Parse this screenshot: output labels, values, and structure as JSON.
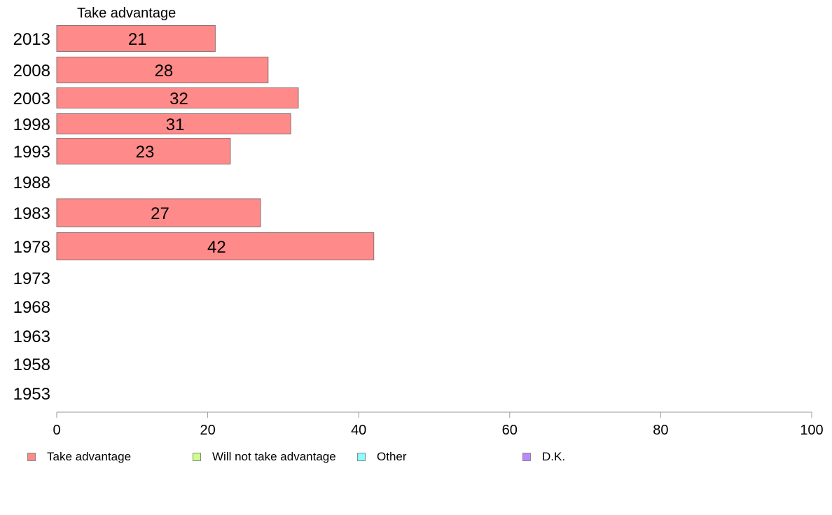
{
  "chart_data": {
    "type": "bar",
    "orientation": "horizontal",
    "title": "Take advantage",
    "categories": [
      "2013",
      "2008",
      "2003",
      "1998",
      "1993",
      "1988",
      "1983",
      "1978",
      "1973",
      "1968",
      "1963",
      "1958",
      "1953"
    ],
    "series": [
      {
        "name": "Take advantage",
        "color": "#ff8a8a",
        "values": [
          21,
          28,
          32,
          31,
          23,
          null,
          27,
          42,
          null,
          null,
          null,
          null,
          null
        ]
      }
    ],
    "xlim": [
      0,
      100
    ],
    "xticks": [
      "0",
      "20",
      "40",
      "60",
      "80",
      "100"
    ],
    "grid": false,
    "legend_position": "bottom"
  },
  "legend": [
    {
      "label": "Take advantage",
      "color": "#ff8a8a"
    },
    {
      "label": "Will not take advantage",
      "color": "#ccff88"
    },
    {
      "label": "Other",
      "color": "#88ffff"
    },
    {
      "label": "D.K.",
      "color": "#bb88ff"
    }
  ]
}
